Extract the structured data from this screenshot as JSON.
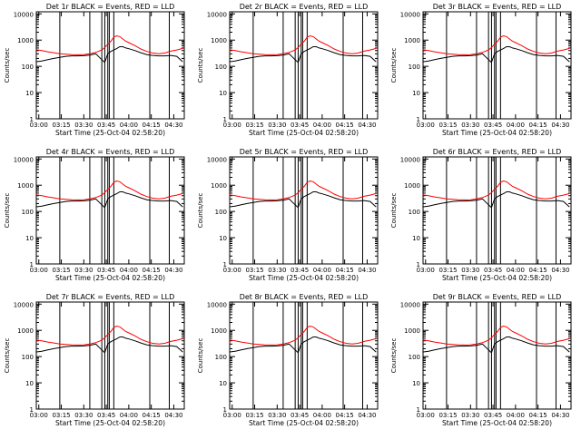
{
  "series_colors": {
    "events": "#000000",
    "lld": "#ff0000"
  },
  "shared": {
    "xlabel": "Start Time (25-Oct-04 02:58:20)",
    "ylabel": "Counts/sec",
    "x_ticks": [
      "03:00",
      "03:15",
      "03:30",
      "03:45",
      "04:00",
      "04:15",
      "04:30"
    ],
    "y_ticks": [
      "1",
      "10",
      "100",
      "1000",
      "10000"
    ],
    "y_scale": "log",
    "ylim": [
      1,
      12000
    ],
    "xlim": [
      "02:58:20",
      "04:37:00"
    ]
  },
  "chart_data": [
    {
      "type": "line",
      "title": "Det 1r BLACK = Events, RED = LLD",
      "x": [
        "02:58",
        "03:02",
        "03:06",
        "03:10",
        "03:14",
        "03:18",
        "03:22",
        "03:26",
        "03:30",
        "03:34",
        "03:38",
        "03:42",
        "03:44",
        "03:46",
        "03:48",
        "03:50",
        "03:52",
        "03:54",
        "03:56",
        "03:58",
        "04:00",
        "04:04",
        "04:08",
        "04:12",
        "04:16",
        "04:20",
        "04:24",
        "04:28",
        "04:32",
        "04:36"
      ],
      "series": [
        {
          "values": [
            150,
            160,
            180,
            200,
            220,
            240,
            250,
            250,
            255,
            270,
            300,
            180,
            140,
            300,
            370,
            420,
            480,
            560,
            560,
            500,
            470,
            400,
            330,
            280,
            260,
            250,
            250,
            260,
            240,
            150
          ]
        },
        {
          "values": [
            430,
            400,
            360,
            330,
            300,
            290,
            280,
            275,
            280,
            300,
            340,
            420,
            520,
            700,
            900,
            1300,
            1450,
            1350,
            1100,
            900,
            800,
            620,
            460,
            370,
            320,
            300,
            320,
            380,
            420,
            480
          ]
        }
      ],
      "vlines": [
        "03:14",
        "03:34",
        "03:42",
        "03:44",
        "03:46",
        "03:47",
        "03:50",
        "04:14",
        "04:27"
      ]
    },
    {
      "type": "line",
      "title": "Det 2r BLACK = Events, RED = LLD",
      "x": [
        "02:58",
        "03:02",
        "03:06",
        "03:10",
        "03:14",
        "03:18",
        "03:22",
        "03:26",
        "03:30",
        "03:34",
        "03:38",
        "03:42",
        "03:44",
        "03:46",
        "03:48",
        "03:50",
        "03:52",
        "03:54",
        "03:56",
        "03:58",
        "04:00",
        "04:04",
        "04:08",
        "04:12",
        "04:16",
        "04:20",
        "04:24",
        "04:28",
        "04:32",
        "04:36"
      ],
      "series": [
        {
          "values": [
            150,
            160,
            180,
            200,
            220,
            240,
            250,
            250,
            255,
            270,
            300,
            180,
            140,
            300,
            370,
            420,
            480,
            560,
            560,
            500,
            470,
            400,
            330,
            280,
            260,
            250,
            250,
            260,
            240,
            150
          ]
        },
        {
          "values": [
            430,
            400,
            360,
            330,
            300,
            290,
            280,
            275,
            280,
            300,
            340,
            420,
            520,
            700,
            900,
            1300,
            1450,
            1350,
            1100,
            900,
            800,
            620,
            460,
            370,
            320,
            300,
            320,
            380,
            420,
            480
          ]
        }
      ],
      "vlines": [
        "03:14",
        "03:34",
        "03:42",
        "03:44",
        "03:46",
        "03:47",
        "03:50",
        "04:14",
        "04:27"
      ]
    },
    {
      "type": "line",
      "title": "Det 3r BLACK = Events, RED = LLD",
      "x": [
        "02:58",
        "03:02",
        "03:06",
        "03:10",
        "03:14",
        "03:18",
        "03:22",
        "03:26",
        "03:30",
        "03:34",
        "03:38",
        "03:42",
        "03:44",
        "03:46",
        "03:48",
        "03:50",
        "03:52",
        "03:54",
        "03:56",
        "03:58",
        "04:00",
        "04:04",
        "04:08",
        "04:12",
        "04:16",
        "04:20",
        "04:24",
        "04:28",
        "04:32",
        "04:36"
      ],
      "series": [
        {
          "values": [
            150,
            160,
            180,
            200,
            220,
            240,
            250,
            250,
            255,
            270,
            300,
            180,
            140,
            300,
            370,
            420,
            480,
            560,
            560,
            500,
            470,
            400,
            330,
            280,
            260,
            250,
            250,
            260,
            240,
            150
          ]
        },
        {
          "values": [
            430,
            400,
            360,
            330,
            300,
            290,
            280,
            275,
            280,
            300,
            340,
            420,
            520,
            700,
            900,
            1300,
            1450,
            1350,
            1100,
            900,
            800,
            620,
            460,
            370,
            320,
            300,
            320,
            380,
            420,
            480
          ]
        }
      ],
      "vlines": [
        "03:14",
        "03:34",
        "03:42",
        "03:44",
        "03:46",
        "03:47",
        "03:50",
        "04:14",
        "04:27"
      ]
    },
    {
      "type": "line",
      "title": "Det 4r BLACK = Events, RED = LLD",
      "x": [
        "02:58",
        "03:02",
        "03:06",
        "03:10",
        "03:14",
        "03:18",
        "03:22",
        "03:26",
        "03:30",
        "03:34",
        "03:38",
        "03:42",
        "03:44",
        "03:46",
        "03:48",
        "03:50",
        "03:52",
        "03:54",
        "03:56",
        "03:58",
        "04:00",
        "04:04",
        "04:08",
        "04:12",
        "04:16",
        "04:20",
        "04:24",
        "04:28",
        "04:32",
        "04:36"
      ],
      "series": [
        {
          "values": [
            150,
            160,
            180,
            200,
            220,
            240,
            250,
            250,
            255,
            270,
            300,
            180,
            140,
            300,
            370,
            420,
            480,
            560,
            560,
            500,
            470,
            400,
            330,
            280,
            260,
            250,
            250,
            260,
            240,
            150
          ]
        },
        {
          "values": [
            430,
            400,
            360,
            330,
            300,
            290,
            280,
            275,
            280,
            300,
            340,
            420,
            520,
            700,
            900,
            1300,
            1450,
            1350,
            1100,
            900,
            800,
            620,
            460,
            370,
            320,
            300,
            320,
            380,
            420,
            480
          ]
        }
      ],
      "vlines": [
        "03:14",
        "03:34",
        "03:42",
        "03:44",
        "03:46",
        "03:47",
        "03:50",
        "04:14",
        "04:27"
      ]
    },
    {
      "type": "line",
      "title": "Det 5r BLACK = Events, RED = LLD",
      "x": [
        "02:58",
        "03:02",
        "03:06",
        "03:10",
        "03:14",
        "03:18",
        "03:22",
        "03:26",
        "03:30",
        "03:34",
        "03:38",
        "03:42",
        "03:44",
        "03:46",
        "03:48",
        "03:50",
        "03:52",
        "03:54",
        "03:56",
        "03:58",
        "04:00",
        "04:04",
        "04:08",
        "04:12",
        "04:16",
        "04:20",
        "04:24",
        "04:28",
        "04:32",
        "04:36"
      ],
      "series": [
        {
          "values": [
            150,
            160,
            180,
            200,
            220,
            240,
            250,
            250,
            255,
            270,
            300,
            180,
            140,
            300,
            370,
            420,
            480,
            560,
            560,
            500,
            470,
            400,
            330,
            280,
            260,
            250,
            250,
            260,
            240,
            150
          ]
        },
        {
          "values": [
            430,
            400,
            360,
            330,
            300,
            290,
            280,
            275,
            280,
            300,
            340,
            420,
            520,
            700,
            900,
            1300,
            1450,
            1350,
            1100,
            900,
            800,
            620,
            460,
            370,
            320,
            300,
            320,
            380,
            420,
            480
          ]
        }
      ],
      "vlines": [
        "03:14",
        "03:34",
        "03:42",
        "03:44",
        "03:46",
        "03:47",
        "03:50",
        "04:14",
        "04:27"
      ]
    },
    {
      "type": "line",
      "title": "Det 6r BLACK = Events, RED = LLD",
      "x": [
        "02:58",
        "03:02",
        "03:06",
        "03:10",
        "03:14",
        "03:18",
        "03:22",
        "03:26",
        "03:30",
        "03:34",
        "03:38",
        "03:42",
        "03:44",
        "03:46",
        "03:48",
        "03:50",
        "03:52",
        "03:54",
        "03:56",
        "03:58",
        "04:00",
        "04:04",
        "04:08",
        "04:12",
        "04:16",
        "04:20",
        "04:24",
        "04:28",
        "04:32",
        "04:36"
      ],
      "series": [
        {
          "values": [
            150,
            160,
            180,
            200,
            220,
            240,
            250,
            250,
            255,
            270,
            300,
            180,
            140,
            300,
            370,
            420,
            480,
            560,
            560,
            500,
            470,
            400,
            330,
            280,
            260,
            250,
            250,
            260,
            240,
            150
          ]
        },
        {
          "values": [
            430,
            400,
            360,
            330,
            300,
            290,
            280,
            275,
            280,
            300,
            340,
            420,
            520,
            700,
            900,
            1300,
            1450,
            1350,
            1100,
            900,
            800,
            620,
            460,
            370,
            320,
            300,
            320,
            380,
            420,
            480
          ]
        }
      ],
      "vlines": [
        "03:14",
        "03:34",
        "03:42",
        "03:44",
        "03:46",
        "03:47",
        "03:50",
        "04:14",
        "04:27"
      ]
    },
    {
      "type": "line",
      "title": "Det 7r BLACK = Events, RED = LLD",
      "x": [
        "02:58",
        "03:02",
        "03:06",
        "03:10",
        "03:14",
        "03:18",
        "03:22",
        "03:26",
        "03:30",
        "03:34",
        "03:38",
        "03:42",
        "03:44",
        "03:46",
        "03:48",
        "03:50",
        "03:52",
        "03:54",
        "03:56",
        "03:58",
        "04:00",
        "04:04",
        "04:08",
        "04:12",
        "04:16",
        "04:20",
        "04:24",
        "04:28",
        "04:32",
        "04:36"
      ],
      "series": [
        {
          "values": [
            150,
            160,
            180,
            200,
            220,
            240,
            250,
            250,
            255,
            270,
            300,
            180,
            140,
            300,
            370,
            420,
            480,
            560,
            560,
            500,
            470,
            400,
            330,
            280,
            260,
            250,
            250,
            260,
            240,
            150
          ]
        },
        {
          "values": [
            430,
            400,
            360,
            330,
            300,
            290,
            280,
            275,
            280,
            300,
            340,
            420,
            520,
            700,
            900,
            1300,
            1450,
            1350,
            1100,
            900,
            800,
            620,
            460,
            370,
            320,
            300,
            320,
            380,
            420,
            480
          ]
        }
      ],
      "vlines": [
        "03:14",
        "03:34",
        "03:42",
        "03:44",
        "03:46",
        "03:47",
        "03:50",
        "04:14",
        "04:27"
      ]
    },
    {
      "type": "line",
      "title": "Det 8r BLACK = Events, RED = LLD",
      "x": [
        "02:58",
        "03:02",
        "03:06",
        "03:10",
        "03:14",
        "03:18",
        "03:22",
        "03:26",
        "03:30",
        "03:34",
        "03:38",
        "03:42",
        "03:44",
        "03:46",
        "03:48",
        "03:50",
        "03:52",
        "03:54",
        "03:56",
        "03:58",
        "04:00",
        "04:04",
        "04:08",
        "04:12",
        "04:16",
        "04:20",
        "04:24",
        "04:28",
        "04:32",
        "04:36"
      ],
      "series": [
        {
          "values": [
            150,
            160,
            180,
            200,
            220,
            240,
            250,
            250,
            255,
            270,
            300,
            180,
            140,
            300,
            370,
            420,
            480,
            560,
            560,
            500,
            470,
            400,
            330,
            280,
            260,
            250,
            250,
            260,
            240,
            150
          ]
        },
        {
          "values": [
            430,
            400,
            360,
            330,
            300,
            290,
            280,
            275,
            280,
            300,
            340,
            420,
            520,
            700,
            900,
            1300,
            1450,
            1350,
            1100,
            900,
            800,
            620,
            460,
            370,
            320,
            300,
            320,
            380,
            420,
            480
          ]
        }
      ],
      "vlines": [
        "03:14",
        "03:34",
        "03:42",
        "03:44",
        "03:46",
        "03:47",
        "03:50",
        "04:14",
        "04:27"
      ]
    },
    {
      "type": "line",
      "title": "Det 9r BLACK = Events, RED = LLD",
      "x": [
        "02:58",
        "03:02",
        "03:06",
        "03:10",
        "03:14",
        "03:18",
        "03:22",
        "03:26",
        "03:30",
        "03:34",
        "03:38",
        "03:42",
        "03:44",
        "03:46",
        "03:48",
        "03:50",
        "03:52",
        "03:54",
        "03:56",
        "03:58",
        "04:00",
        "04:04",
        "04:08",
        "04:12",
        "04:16",
        "04:20",
        "04:24",
        "04:28",
        "04:32",
        "04:36"
      ],
      "series": [
        {
          "values": [
            150,
            160,
            180,
            200,
            220,
            240,
            250,
            250,
            255,
            270,
            300,
            180,
            140,
            300,
            370,
            420,
            480,
            560,
            560,
            500,
            470,
            400,
            330,
            280,
            260,
            250,
            250,
            260,
            240,
            150
          ]
        },
        {
          "values": [
            430,
            400,
            360,
            330,
            300,
            290,
            280,
            275,
            280,
            300,
            340,
            420,
            520,
            700,
            900,
            1300,
            1450,
            1350,
            1100,
            900,
            800,
            620,
            460,
            370,
            320,
            300,
            320,
            380,
            420,
            480
          ]
        }
      ],
      "vlines": [
        "03:14",
        "03:34",
        "03:42",
        "03:44",
        "03:46",
        "03:47",
        "03:50",
        "04:14",
        "04:27"
      ]
    }
  ]
}
